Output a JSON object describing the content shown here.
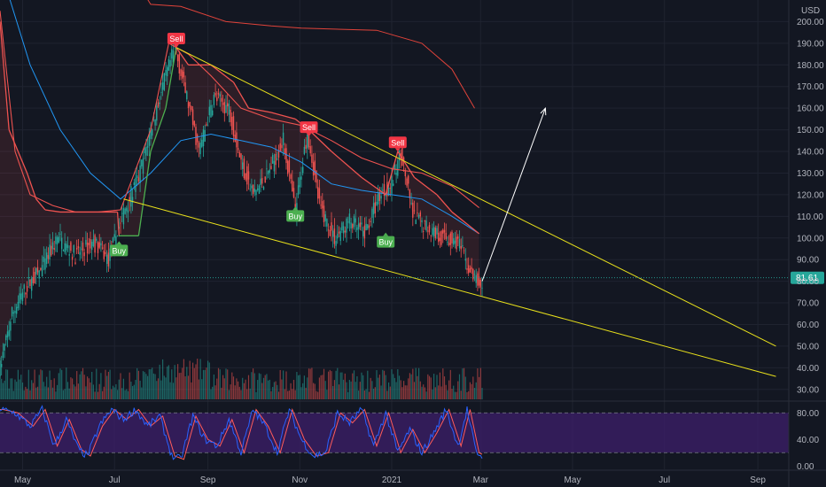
{
  "currency_label": "USD",
  "colors": {
    "background": "#131722",
    "up": "#26a69a",
    "down": "#ef5350",
    "ema_fast": "#ef5350",
    "ema_slow": "#e0433a",
    "ma_blue": "#2196f3",
    "trailing_stop": "#ef5350",
    "trend_lines": "#e8e01b",
    "arrow": "#ffffff",
    "stoch_k": "#2962ff",
    "stoch_d": "#ff5b5b",
    "stoch_band": "#3d1f6b",
    "buy": "#4caf50",
    "sell": "#f23645",
    "price_tag": "#26a69a"
  },
  "chart_data": [
    {
      "type": "candlestick",
      "title": "",
      "y_axis_label": "USD",
      "ylim": [
        25,
        210
      ],
      "y_ticks": [
        30,
        40,
        50,
        60,
        70,
        80,
        90,
        100,
        110,
        120,
        130,
        140,
        150,
        160,
        170,
        180,
        190,
        200
      ],
      "y_tick_labels": [
        "30.00",
        "40.00",
        "50.00",
        "60.00",
        "70.00",
        "80.00",
        "90.00",
        "100.00",
        "110.00",
        "120.00",
        "130.00",
        "140.00",
        "150.00",
        "160.00",
        "170.00",
        "180.00",
        "190.00",
        "200.00"
      ],
      "x_ticks": [
        {
          "label": "May",
          "day": 15
        },
        {
          "label": "Jul",
          "day": 76
        },
        {
          "label": "Sep",
          "day": 138
        },
        {
          "label": "Nov",
          "day": 199
        },
        {
          "label": "2021",
          "day": 260
        },
        {
          "label": "Mar",
          "day": 319
        },
        {
          "label": "May",
          "day": 380
        },
        {
          "label": "Jul",
          "day": 441
        },
        {
          "label": "Sep",
          "day": 503
        }
      ],
      "current_price": "81.61",
      "signals": [
        {
          "label": "Buy",
          "day": 79,
          "price": 94
        },
        {
          "label": "Sell",
          "day": 117,
          "price": 192
        },
        {
          "label": "Buy",
          "day": 196,
          "price": 110
        },
        {
          "label": "Sell",
          "day": 205,
          "price": 151
        },
        {
          "label": "Buy",
          "day": 256,
          "price": 98
        },
        {
          "label": "Sell",
          "day": 264,
          "price": 144
        }
      ],
      "price_path": [
        {
          "day": 0,
          "price": 40
        },
        {
          "day": 8,
          "price": 65
        },
        {
          "day": 18,
          "price": 78
        },
        {
          "day": 28,
          "price": 86
        },
        {
          "day": 38,
          "price": 100
        },
        {
          "day": 50,
          "price": 92
        },
        {
          "day": 62,
          "price": 98
        },
        {
          "day": 72,
          "price": 90
        },
        {
          "day": 82,
          "price": 112
        },
        {
          "day": 92,
          "price": 128
        },
        {
          "day": 100,
          "price": 150
        },
        {
          "day": 108,
          "price": 170
        },
        {
          "day": 116,
          "price": 188
        },
        {
          "day": 124,
          "price": 165
        },
        {
          "day": 132,
          "price": 140
        },
        {
          "day": 142,
          "price": 165
        },
        {
          "day": 152,
          "price": 160
        },
        {
          "day": 160,
          "price": 135
        },
        {
          "day": 168,
          "price": 120
        },
        {
          "day": 178,
          "price": 130
        },
        {
          "day": 188,
          "price": 145
        },
        {
          "day": 196,
          "price": 112
        },
        {
          "day": 204,
          "price": 150
        },
        {
          "day": 212,
          "price": 115
        },
        {
          "day": 222,
          "price": 100
        },
        {
          "day": 232,
          "price": 108
        },
        {
          "day": 242,
          "price": 102
        },
        {
          "day": 252,
          "price": 120
        },
        {
          "day": 260,
          "price": 125
        },
        {
          "day": 266,
          "price": 140
        },
        {
          "day": 274,
          "price": 110
        },
        {
          "day": 284,
          "price": 105
        },
        {
          "day": 294,
          "price": 100
        },
        {
          "day": 304,
          "price": 98
        },
        {
          "day": 312,
          "price": 84
        },
        {
          "day": 318,
          "price": 78
        }
      ],
      "ema_fast": [
        {
          "day": 0,
          "price": 205
        },
        {
          "day": 10,
          "price": 140
        },
        {
          "day": 20,
          "price": 120
        },
        {
          "day": 35,
          "price": 115
        },
        {
          "day": 50,
          "price": 112
        },
        {
          "day": 65,
          "price": 112
        },
        {
          "day": 80,
          "price": 113
        },
        {
          "day": 100,
          "price": 150
        },
        {
          "day": 112,
          "price": 190
        },
        {
          "day": 125,
          "price": 185
        },
        {
          "day": 140,
          "price": 175
        },
        {
          "day": 160,
          "price": 160
        },
        {
          "day": 180,
          "price": 155
        },
        {
          "day": 200,
          "price": 152
        },
        {
          "day": 220,
          "price": 145
        },
        {
          "day": 240,
          "price": 137
        },
        {
          "day": 260,
          "price": 132
        },
        {
          "day": 280,
          "price": 130
        },
        {
          "day": 300,
          "price": 124
        },
        {
          "day": 318,
          "price": 114
        }
      ],
      "ema_slow": [
        {
          "day": 85,
          "price": 225
        },
        {
          "day": 100,
          "price": 208
        },
        {
          "day": 120,
          "price": 207
        },
        {
          "day": 150,
          "price": 200
        },
        {
          "day": 180,
          "price": 198
        },
        {
          "day": 200,
          "price": 197
        },
        {
          "day": 250,
          "price": 196
        },
        {
          "day": 280,
          "price": 190
        },
        {
          "day": 300,
          "price": 178
        },
        {
          "day": 315,
          "price": 160
        }
      ],
      "ma_blue": [
        {
          "day": 0,
          "price": 225
        },
        {
          "day": 20,
          "price": 180
        },
        {
          "day": 40,
          "price": 150
        },
        {
          "day": 60,
          "price": 130
        },
        {
          "day": 80,
          "price": 118
        },
        {
          "day": 100,
          "price": 130
        },
        {
          "day": 120,
          "price": 145
        },
        {
          "day": 140,
          "price": 148
        },
        {
          "day": 160,
          "price": 145
        },
        {
          "day": 180,
          "price": 142
        },
        {
          "day": 200,
          "price": 135
        },
        {
          "day": 220,
          "price": 125
        },
        {
          "day": 240,
          "price": 122
        },
        {
          "day": 260,
          "price": 120
        },
        {
          "day": 280,
          "price": 118
        },
        {
          "day": 300,
          "price": 110
        },
        {
          "day": 318,
          "price": 102
        }
      ],
      "trailing_stop": [
        {
          "day": 0,
          "price": 200
        },
        {
          "day": 6,
          "price": 150
        },
        {
          "day": 12,
          "price": 140
        },
        {
          "day": 18,
          "price": 130
        },
        {
          "day": 24,
          "price": 118
        },
        {
          "day": 30,
          "price": 113
        },
        {
          "day": 40,
          "price": 112
        },
        {
          "day": 60,
          "price": 112
        },
        {
          "day": 78,
          "price": 112
        },
        {
          "day": 79,
          "price": 101
        },
        {
          "day": 92,
          "price": 101
        },
        {
          "day": 100,
          "price": 140
        },
        {
          "day": 110,
          "price": 160
        },
        {
          "day": 117,
          "price": 188
        },
        {
          "day": 125,
          "price": 180
        },
        {
          "day": 140,
          "price": 180
        },
        {
          "day": 155,
          "price": 172
        },
        {
          "day": 165,
          "price": 160
        },
        {
          "day": 180,
          "price": 158
        },
        {
          "day": 196,
          "price": 155
        },
        {
          "day": 205,
          "price": 150
        },
        {
          "day": 220,
          "price": 140
        },
        {
          "day": 240,
          "price": 128
        },
        {
          "day": 256,
          "price": 120
        },
        {
          "day": 264,
          "price": 140
        },
        {
          "day": 275,
          "price": 128
        },
        {
          "day": 290,
          "price": 120
        },
        {
          "day": 300,
          "price": 112
        },
        {
          "day": 318,
          "price": 102
        }
      ],
      "upper_trend_line": [
        {
          "day": 117,
          "price": 188
        },
        {
          "day": 515,
          "price": 50
        }
      ],
      "lower_trend_line": [
        {
          "day": 82,
          "price": 118
        },
        {
          "day": 515,
          "price": 36
        }
      ],
      "projection_arrow": [
        {
          "day": 320,
          "price": 80
        },
        {
          "day": 362,
          "price": 160
        }
      ]
    },
    {
      "type": "volume",
      "title": "",
      "note": "volume bars shown beneath price",
      "bar_count": 320
    },
    {
      "type": "line",
      "title": "",
      "ylim": [
        -5,
        95
      ],
      "y_ticks": [
        0,
        40,
        80
      ],
      "y_tick_labels": [
        "0.00",
        "40.00",
        "80.00"
      ],
      "band": [
        20,
        80
      ],
      "series": [
        {
          "name": "",
          "key": "k"
        },
        {
          "name": "",
          "key": "d"
        }
      ],
      "oscillator_path": [
        {
          "day": 0,
          "value": 85
        },
        {
          "day": 10,
          "value": 80
        },
        {
          "day": 20,
          "value": 60
        },
        {
          "day": 28,
          "value": 85
        },
        {
          "day": 36,
          "value": 30
        },
        {
          "day": 44,
          "value": 70
        },
        {
          "day": 52,
          "value": 25
        },
        {
          "day": 58,
          "value": 15
        },
        {
          "day": 66,
          "value": 60
        },
        {
          "day": 74,
          "value": 85
        },
        {
          "day": 82,
          "value": 70
        },
        {
          "day": 90,
          "value": 85
        },
        {
          "day": 98,
          "value": 60
        },
        {
          "day": 106,
          "value": 75
        },
        {
          "day": 114,
          "value": 15
        },
        {
          "day": 120,
          "value": 10
        },
        {
          "day": 128,
          "value": 75
        },
        {
          "day": 136,
          "value": 40
        },
        {
          "day": 144,
          "value": 30
        },
        {
          "day": 152,
          "value": 70
        },
        {
          "day": 160,
          "value": 20
        },
        {
          "day": 168,
          "value": 85
        },
        {
          "day": 176,
          "value": 60
        },
        {
          "day": 184,
          "value": 20
        },
        {
          "day": 192,
          "value": 85
        },
        {
          "day": 200,
          "value": 40
        },
        {
          "day": 208,
          "value": 15
        },
        {
          "day": 216,
          "value": 20
        },
        {
          "day": 224,
          "value": 80
        },
        {
          "day": 232,
          "value": 65
        },
        {
          "day": 240,
          "value": 85
        },
        {
          "day": 248,
          "value": 30
        },
        {
          "day": 256,
          "value": 80
        },
        {
          "day": 264,
          "value": 20
        },
        {
          "day": 272,
          "value": 55
        },
        {
          "day": 280,
          "value": 20
        },
        {
          "day": 288,
          "value": 50
        },
        {
          "day": 296,
          "value": 85
        },
        {
          "day": 304,
          "value": 30
        },
        {
          "day": 310,
          "value": 85
        },
        {
          "day": 316,
          "value": 20
        },
        {
          "day": 320,
          "value": 15
        }
      ]
    }
  ]
}
